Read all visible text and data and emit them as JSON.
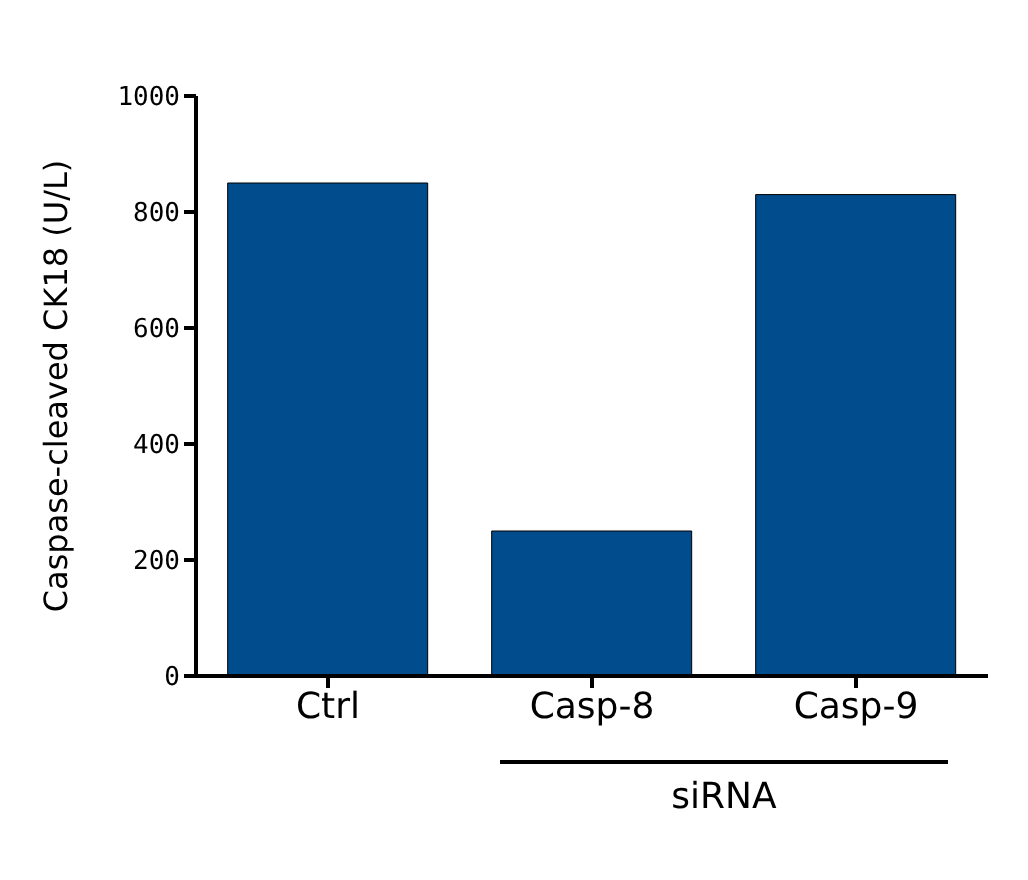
{
  "chart_data": {
    "type": "bar",
    "ylabel": "Caspase-cleaved CK18 (U/L)",
    "categories": [
      "Ctrl",
      "Casp-8",
      "Casp-9"
    ],
    "values": [
      850,
      250,
      830
    ],
    "color": "#004c8c",
    "ylim": [
      0,
      1000
    ],
    "yticks": [
      0,
      200,
      400,
      600,
      800,
      1000
    ],
    "grid": false,
    "annotations": [
      "siRNA"
    ]
  }
}
